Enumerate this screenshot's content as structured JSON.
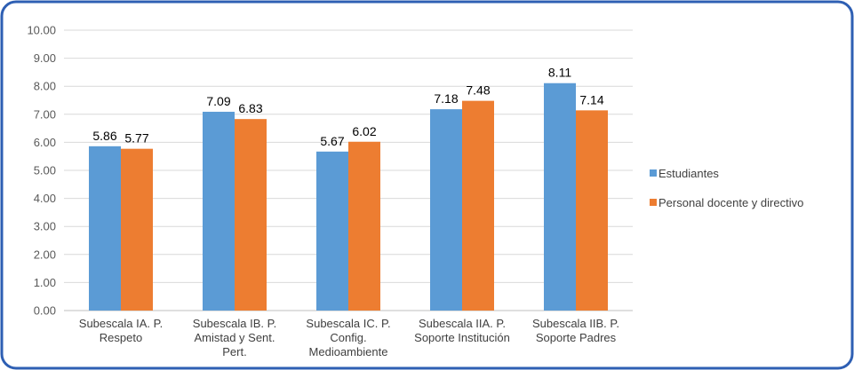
{
  "chart_data": {
    "type": "bar",
    "categories": [
      [
        "Subescala IA. P.",
        "Respeto"
      ],
      [
        "Subescala IB. P.",
        "Amistad y Sent.",
        "Pert."
      ],
      [
        "Subescala IC. P.",
        "Config.",
        "Medioambiente"
      ],
      [
        "Subescala IIA. P.",
        "Soporte Institución"
      ],
      [
        "Subescala IIB. P.",
        "Soporte Padres"
      ]
    ],
    "series": [
      {
        "name": "Estudiantes",
        "values": [
          5.86,
          7.09,
          5.67,
          7.18,
          8.11
        ],
        "labels": [
          "5.86",
          "7.09",
          "5.67",
          "7.18",
          "8.11"
        ],
        "color": "#5B9BD5"
      },
      {
        "name": "Personal docente y directivo",
        "values": [
          5.77,
          6.83,
          6.02,
          7.48,
          7.14
        ],
        "labels": [
          "5.77",
          "6.83",
          "6.02",
          "7.48",
          "7.14"
        ],
        "color": "#ED7D31"
      }
    ],
    "yticks": [
      "0.00",
      "1.00",
      "2.00",
      "3.00",
      "4.00",
      "5.00",
      "6.00",
      "7.00",
      "8.00",
      "9.00",
      "10.00"
    ],
    "ylim": [
      0,
      10
    ],
    "grid": true,
    "legend": "right",
    "title": "",
    "xlabel": "",
    "ylabel": "",
    "frame_color": "#2E5FB3"
  }
}
